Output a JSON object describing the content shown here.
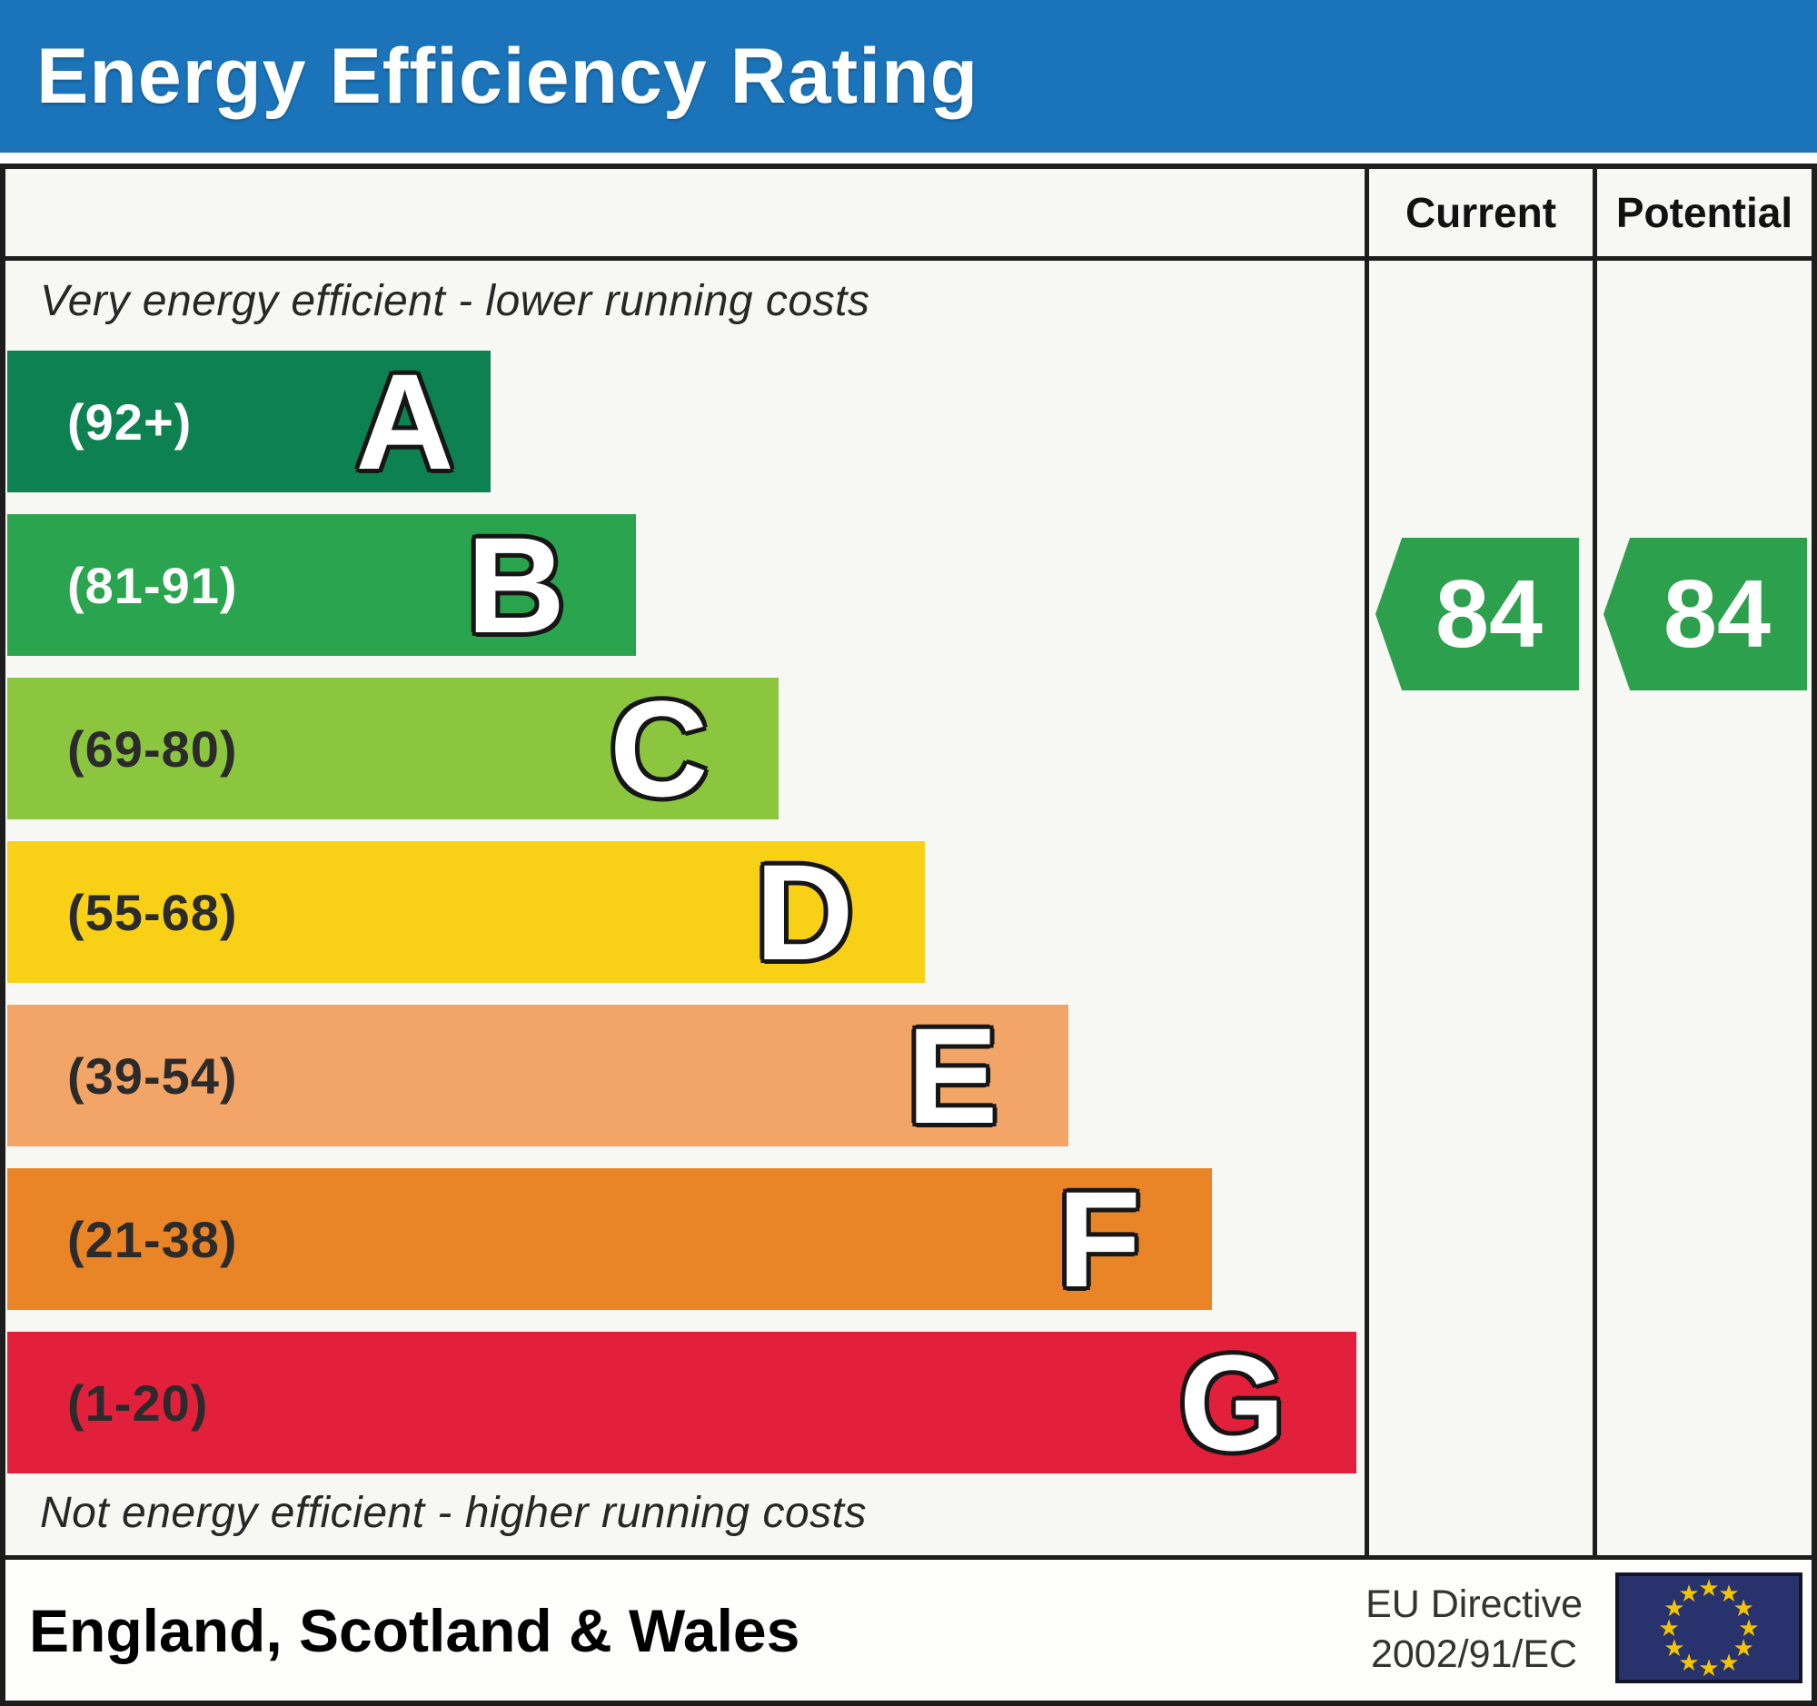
{
  "title": "Energy Efficiency Rating",
  "table_header": {
    "current": "Current",
    "potential": "Potential"
  },
  "captions": {
    "top": "Very energy efficient - lower running costs",
    "bottom": "Not energy efficient - higher running costs"
  },
  "chart_data": {
    "type": "bar",
    "title": "Energy Efficiency Rating",
    "bands": [
      {
        "letter": "A",
        "range": "(92+)",
        "min": 92,
        "max": 100,
        "color": "#0e8152",
        "label_color": "#ffffff",
        "width_pct": 35.5
      },
      {
        "letter": "B",
        "range": "(81-91)",
        "min": 81,
        "max": 91,
        "color": "#2aa44e",
        "label_color": "#ffffff",
        "width_pct": 46.2
      },
      {
        "letter": "C",
        "range": "(69-80)",
        "min": 69,
        "max": 80,
        "color": "#8cc63f",
        "label_color": "#2b2b2b",
        "width_pct": 56.7
      },
      {
        "letter": "D",
        "range": "(55-68)",
        "min": 55,
        "max": 68,
        "color": "#f8d116",
        "label_color": "#2b2b2b",
        "width_pct": 67.4
      },
      {
        "letter": "E",
        "range": "(39-54)",
        "min": 39,
        "max": 54,
        "color": "#f2a567",
        "label_color": "#2b2b2b",
        "width_pct": 78.0
      },
      {
        "letter": "F",
        "range": "(21-38)",
        "min": 21,
        "max": 38,
        "color": "#ea8527",
        "label_color": "#2b2b2b",
        "width_pct": 88.5
      },
      {
        "letter": "G",
        "range": "(1-20)",
        "min": 1,
        "max": 20,
        "color": "#e3203c",
        "label_color": "#2b2b2b",
        "width_pct": 99.1
      }
    ],
    "ratings": {
      "current": {
        "value": "84",
        "band": "B",
        "color": "#2da04e"
      },
      "potential": {
        "value": "84",
        "band": "B",
        "color": "#2da04e"
      }
    },
    "legend_position": "right-columns",
    "grid": false
  },
  "footer": {
    "region": "England, Scotland & Wales",
    "directive": {
      "line1": "EU Directive",
      "line2": "2002/91/EC"
    },
    "eu_flag": {
      "background": "#28336e",
      "star_color": "#f2c500",
      "star_count": 12
    }
  },
  "colors": {
    "header_bg": "#1b74b9",
    "header_text": "#ffffff",
    "frame": "#1d1d1d",
    "panel_bg": "#f7f7f3",
    "caption_text": "#272727"
  }
}
